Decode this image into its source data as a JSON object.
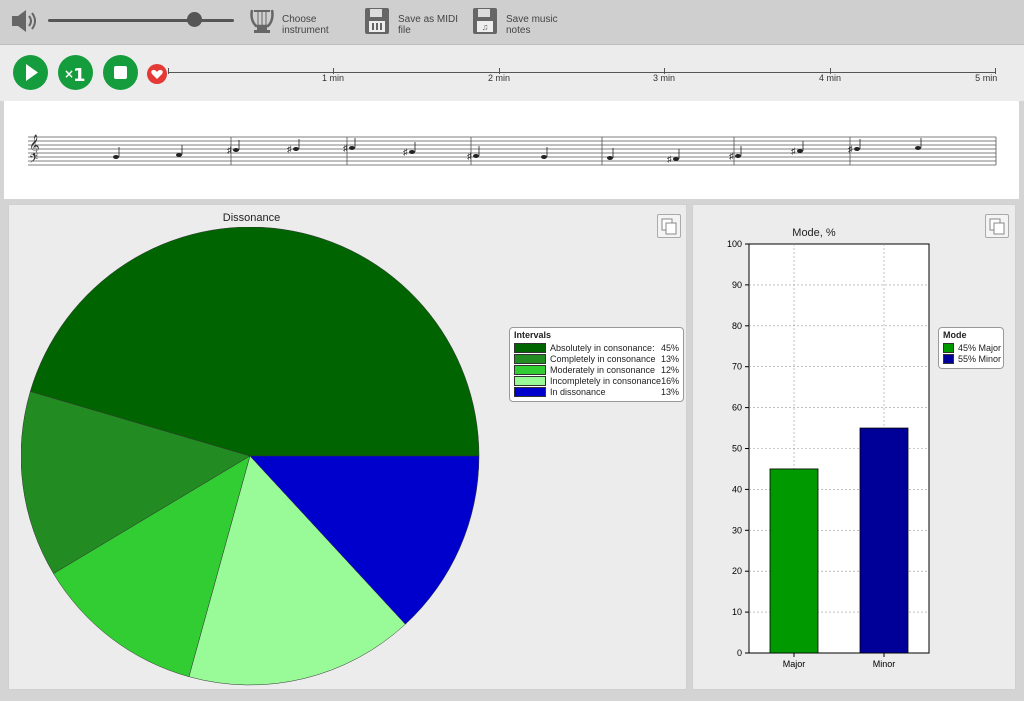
{
  "toolbar": {
    "volume_icon": "speaker-icon",
    "volume_level": 0.8,
    "choose_instrument": "Choose\ninstrument",
    "save_midi": "Save as MIDI\nfile",
    "save_notes": "Save music\nnotes"
  },
  "transport": {
    "timeline_labels": [
      "1 min",
      "2 min",
      "3 min",
      "4 min",
      "5 min"
    ]
  },
  "pie": {
    "chart_data": {
      "type": "pie",
      "title": "Dissonance",
      "legend_title": "Intervals",
      "legend_position": "right",
      "slices": [
        {
          "label": "Absolutely in consonance:",
          "pct_label": "45%",
          "value": 45,
          "color": "#006400"
        },
        {
          "label": "Completely in consonance",
          "pct_label": "13%",
          "value": 13,
          "color": "#228b22"
        },
        {
          "label": "Moderately in consonance",
          "pct_label": "12%",
          "value": 12,
          "color": "#32cd32"
        },
        {
          "label": "Incompletely in consonance",
          "pct_label": "16%",
          "value": 16,
          "color": "#98fb98"
        },
        {
          "label": "In dissonance",
          "pct_label": "13%",
          "value": 13,
          "color": "#0000cd"
        }
      ]
    }
  },
  "bar": {
    "chart_data": {
      "type": "bar",
      "title": "Mode, %",
      "categories": [
        "Major",
        "Minor"
      ],
      "values": [
        45,
        55
      ],
      "colors": [
        "#009900",
        "#000099"
      ],
      "ylim": [
        0,
        100
      ],
      "yticks": [
        "0",
        "10",
        "20",
        "30",
        "40",
        "50",
        "60",
        "70",
        "80",
        "90",
        "100"
      ],
      "grid": true,
      "legend_title": "Mode",
      "legend_position": "right",
      "legend_entries": [
        "45% Major",
        "55% Minor"
      ]
    }
  }
}
